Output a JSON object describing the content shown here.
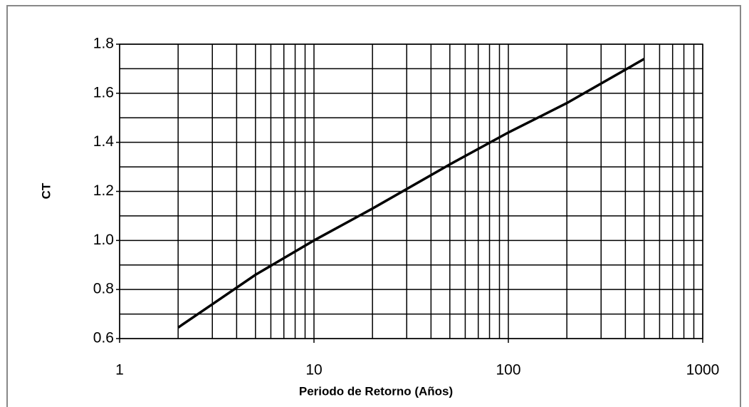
{
  "chart_data": {
    "type": "line",
    "x_label": "Periodo de Retorno (Años)",
    "y_label": "CT",
    "x_scale": "log",
    "xlim": [
      1,
      1000
    ],
    "xticks": [
      1,
      10,
      100,
      1000
    ],
    "xminorticks": [
      2,
      3,
      4,
      5,
      6,
      7,
      8,
      9,
      20,
      30,
      40,
      50,
      60,
      70,
      80,
      90,
      200,
      300,
      400,
      500,
      600,
      700,
      800,
      900
    ],
    "ylim": [
      0.6,
      1.8
    ],
    "yticks": [
      0.6,
      0.8,
      {
        "value": 1,
        "label": "1.0"
      },
      1.2,
      1.4,
      1.6,
      1.8
    ],
    "yminorticks": [
      0.7,
      0.9,
      1.1,
      1.3,
      1.5,
      1.7
    ],
    "grid": true,
    "x": [
      2,
      3,
      5,
      10,
      20,
      50,
      100,
      200,
      500
    ],
    "series": [
      {
        "color": "#000000",
        "values": [
          0.645,
          0.74,
          0.86,
          1.0,
          1.13,
          1.31,
          1.44,
          1.56,
          1.74
        ]
      }
    ]
  }
}
